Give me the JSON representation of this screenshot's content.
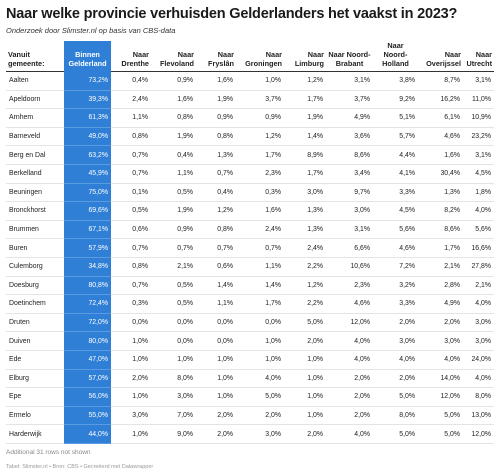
{
  "title": "Naar welke provincie verhuisden Gelderlanders het vaakst in 2023?",
  "subtitle": "Onderzoek door Slimster.nl op basis van CBS-data",
  "highlight_color": "#2f7fd6",
  "columns": [
    "Vanuit gemeente:",
    "Binnen Gelderland",
    "Naar Drenthe",
    "Naar Flevoland",
    "Naar Fryslân",
    "Naar Groningen",
    "Naar Limburg",
    "Naar Noord-Brabant",
    "Naar Noord-Holland",
    "Naar Overijssel",
    "Naar Utrecht"
  ],
  "rows": [
    [
      "Aalten",
      "73,2%",
      "0,4%",
      "0,9%",
      "1,6%",
      "1,0%",
      "1,2%",
      "3,1%",
      "3,8%",
      "8,7%",
      "3,1%"
    ],
    [
      "Apeldoorn",
      "39,3%",
      "2,4%",
      "1,6%",
      "1,9%",
      "3,7%",
      "1,7%",
      "3,7%",
      "9,2%",
      "16,2%",
      "11,0%"
    ],
    [
      "Arnhem",
      "61,3%",
      "1,1%",
      "0,8%",
      "0,9%",
      "0,9%",
      "1,9%",
      "4,9%",
      "5,1%",
      "6,1%",
      "10,9%"
    ],
    [
      "Barneveld",
      "49,0%",
      "0,8%",
      "1,9%",
      "0,8%",
      "1,2%",
      "1,4%",
      "3,6%",
      "5,7%",
      "4,6%",
      "23,2%"
    ],
    [
      "Berg en Dal",
      "63,2%",
      "0,7%",
      "0,4%",
      "1,3%",
      "1,7%",
      "8,9%",
      "8,6%",
      "4,4%",
      "1,6%",
      "3,1%"
    ],
    [
      "Berkelland",
      "45,9%",
      "0,7%",
      "1,1%",
      "0,7%",
      "2,3%",
      "1,7%",
      "3,4%",
      "4,1%",
      "30,4%",
      "4,5%"
    ],
    [
      "Beuningen",
      "75,0%",
      "0,1%",
      "0,5%",
      "0,4%",
      "0,3%",
      "3,0%",
      "9,7%",
      "3,3%",
      "1,3%",
      "1,8%"
    ],
    [
      "Bronckhorst",
      "69,6%",
      "0,5%",
      "1,9%",
      "1,2%",
      "1,6%",
      "1,3%",
      "3,0%",
      "4,5%",
      "8,2%",
      "4,0%"
    ],
    [
      "Brummen",
      "67,1%",
      "0,6%",
      "0,9%",
      "0,8%",
      "2,4%",
      "1,3%",
      "3,1%",
      "5,6%",
      "8,6%",
      "5,6%"
    ],
    [
      "Buren",
      "57,9%",
      "0,7%",
      "0,7%",
      "0,7%",
      "0,7%",
      "2,4%",
      "6,6%",
      "4,6%",
      "1,7%",
      "16,6%"
    ],
    [
      "Culemborg",
      "34,8%",
      "0,8%",
      "2,1%",
      "0,6%",
      "1,1%",
      "2,2%",
      "10,6%",
      "7,2%",
      "2,1%",
      "27,8%"
    ],
    [
      "Doesburg",
      "80,8%",
      "0,7%",
      "0,5%",
      "1,4%",
      "1,4%",
      "1,2%",
      "2,3%",
      "3,2%",
      "2,8%",
      "2,1%"
    ],
    [
      "Doetinchem",
      "72,4%",
      "0,3%",
      "0,5%",
      "1,1%",
      "1,7%",
      "2,2%",
      "4,6%",
      "3,3%",
      "4,9%",
      "4,0%"
    ],
    [
      "Druten",
      "72,0%",
      "0,0%",
      "0,0%",
      "0,0%",
      "0,0%",
      "5,0%",
      "12,0%",
      "2,0%",
      "2,0%",
      "3,0%"
    ],
    [
      "Duiven",
      "80,0%",
      "1,0%",
      "0,0%",
      "0,0%",
      "1,0%",
      "2,0%",
      "4,0%",
      "3,0%",
      "3,0%",
      "3,0%"
    ],
    [
      "Ede",
      "47,0%",
      "1,0%",
      "1,0%",
      "1,0%",
      "1,0%",
      "1,0%",
      "4,0%",
      "4,0%",
      "4,0%",
      "24,0%"
    ],
    [
      "Elburg",
      "57,0%",
      "2,0%",
      "8,0%",
      "1,0%",
      "4,0%",
      "1,0%",
      "2,0%",
      "2,0%",
      "14,0%",
      "4,0%"
    ],
    [
      "Epe",
      "56,0%",
      "1,0%",
      "3,0%",
      "1,0%",
      "5,0%",
      "1,0%",
      "2,0%",
      "5,0%",
      "12,0%",
      "8,0%"
    ],
    [
      "Ermelo",
      "55,0%",
      "3,0%",
      "7,0%",
      "2,0%",
      "2,0%",
      "1,0%",
      "2,0%",
      "8,0%",
      "5,0%",
      "13,0%"
    ],
    [
      "Harderwijk",
      "44,0%",
      "1,0%",
      "9,0%",
      "2,0%",
      "3,0%",
      "2,0%",
      "4,0%",
      "5,0%",
      "5,0%",
      "12,0%"
    ]
  ],
  "more_rows_note": "Additional 31 rows not shown",
  "footer": "Tabel: Slimster.nl • Bron: CBS • Gecreëerd met Datawrapper"
}
